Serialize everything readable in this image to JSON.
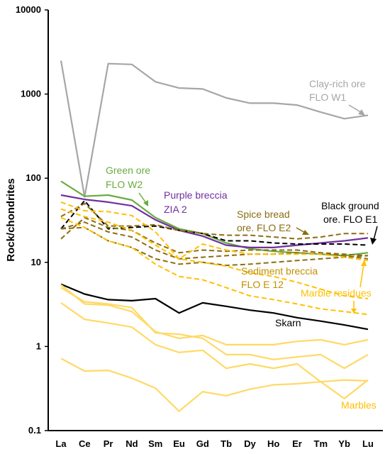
{
  "chart_data": {
    "type": "line",
    "y_scale": "log",
    "ylim": [
      0.1,
      10000
    ],
    "ylabel": "Rock/chondrites",
    "xlabel": "",
    "grid": false,
    "legend": "none (inline annotations)",
    "categories": [
      "La",
      "Ce",
      "Pr",
      "Nd",
      "Sm",
      "Eu",
      "Gd",
      "Tb",
      "Dy",
      "Ho",
      "Er",
      "Tm",
      "Yb",
      "Lu"
    ],
    "y_ticks": [
      "0.1",
      "1",
      "10",
      "100",
      "1000",
      "10000"
    ],
    "series": [
      {
        "name": "Clay-rich ore FLO W1",
        "color": "#a6a6a6",
        "dash": "solid",
        "values": [
          2500,
          60,
          2300,
          2250,
          1400,
          1180,
          1150,
          900,
          780,
          780,
          740,
          610,
          510,
          560
        ]
      },
      {
        "name": "Green ore FLO W2",
        "color": "#6aab3f",
        "dash": "solid",
        "values": [
          92,
          61,
          63,
          55,
          34,
          25,
          22,
          17,
          14.5,
          13.5,
          13,
          12.5,
          12,
          13
        ]
      },
      {
        "name": "Purple breccia ZIA 2",
        "color": "#7030a0",
        "dash": "solid",
        "values": [
          63,
          56,
          52,
          47,
          32,
          24,
          20.5,
          16,
          15,
          15,
          16,
          17,
          18,
          19.5
        ]
      },
      {
        "name": "Black ground ore. FLO E1",
        "color": "#000000",
        "dash": "dashed",
        "values": [
          25,
          54,
          25,
          26,
          27,
          24,
          22,
          18,
          18,
          17,
          16.5,
          16.5,
          16.5,
          16
        ]
      },
      {
        "name": "Spice bread ore. FLO E2",
        "color": "#8c6d12",
        "dash": "dashed",
        "values": [
          35,
          50,
          27,
          27,
          28,
          24,
          22,
          21,
          21,
          20,
          19,
          20,
          22,
          22
        ]
      },
      {
        "name": "",
        "color": "#8c6d12",
        "dash": "dashed",
        "values": [
          25,
          30,
          23,
          20,
          14,
          11,
          11.5,
          12,
          12.5,
          12.5,
          13,
          12.5,
          12,
          11
        ]
      },
      {
        "name": "",
        "color": "#8c6d12",
        "dash": "dashed",
        "values": [
          19,
          34,
          26,
          24,
          17,
          13,
          14,
          13.5,
          14,
          14,
          14,
          13,
          12.5,
          12
        ]
      },
      {
        "name": "Sediment breccia FLO E 12",
        "color": "#8c6d12",
        "dash": "dashed",
        "values": [
          25,
          26,
          18,
          15,
          11,
          9.5,
          10,
          9.2,
          9.5,
          10,
          10.5,
          11,
          11.5,
          12
        ]
      },
      {
        "name": "Marble residues",
        "color": "#ffc000",
        "dash": "dashed",
        "values": [
          52,
          41,
          40,
          36,
          23,
          11,
          16.5,
          14,
          12.5,
          12.5,
          12.5,
          12.5,
          11.5,
          10.5
        ]
      },
      {
        "name": "",
        "color": "#ffc000",
        "dash": "dashed",
        "values": [
          43,
          35,
          30,
          24,
          16,
          11,
          10,
          9,
          7.5,
          6.8,
          5.8,
          4.8,
          4,
          3.7
        ]
      },
      {
        "name": "",
        "color": "#ffc000",
        "dash": "dashed",
        "values": [
          34,
          26,
          18,
          15,
          9.5,
          6.8,
          6.2,
          5,
          4,
          3.6,
          3.2,
          2.8,
          2.6,
          2.4
        ]
      },
      {
        "name": "Skarn",
        "color": "#000000",
        "dash": "solid",
        "values": [
          5.5,
          4.2,
          3.6,
          3.5,
          3.7,
          2.5,
          3.3,
          3.0,
          2.7,
          2.5,
          2.2,
          2.0,
          1.8,
          1.6
        ]
      },
      {
        "name": "Marbles",
        "color": "#ffd966",
        "dash": "solid",
        "values": [
          5.4,
          3.2,
          3.1,
          2.6,
          1.5,
          1.25,
          1.35,
          1.05,
          1.05,
          1.05,
          1.15,
          1.2,
          1.05,
          1.2
        ]
      },
      {
        "name": "",
        "color": "#ffd966",
        "dash": "solid",
        "values": [
          5.0,
          3.4,
          3.2,
          2.9,
          1.45,
          1.4,
          1.25,
          0.8,
          0.8,
          0.7,
          0.75,
          0.8,
          0.55,
          0.8
        ]
      },
      {
        "name": "",
        "color": "#ffd966",
        "dash": "solid",
        "values": [
          3.3,
          2.1,
          1.9,
          1.7,
          1.05,
          0.85,
          0.9,
          0.55,
          0.62,
          0.55,
          0.62,
          0.38,
          0.24,
          0.4
        ]
      },
      {
        "name": "",
        "color": "#ffd966",
        "dash": "solid",
        "values": [
          0.72,
          0.51,
          0.52,
          0.42,
          0.32,
          0.17,
          0.29,
          0.26,
          0.31,
          0.35,
          0.36,
          0.38,
          0.4,
          0.39
        ]
      }
    ],
    "annotations": [
      {
        "text": "Clay-rich ore",
        "color": "#a6a6a6"
      },
      {
        "text": "FLO W1",
        "color": "#a6a6a6"
      },
      {
        "text": "Green ore",
        "color": "#6aab3f"
      },
      {
        "text": "FLO W2",
        "color": "#6aab3f"
      },
      {
        "text": "Purple breccia",
        "color": "#7030a0"
      },
      {
        "text": "ZIA 2",
        "color": "#7030a0"
      },
      {
        "text": "Black ground",
        "color": "#000000"
      },
      {
        "text": "ore. FLO E1",
        "color": "#000000"
      },
      {
        "text": "Spice bread",
        "color": "#8c6d12"
      },
      {
        "text": "ore. FLO E2",
        "color": "#8c6d12"
      },
      {
        "text": "Sediment breccia",
        "color": "#c09000"
      },
      {
        "text": "FLO E 12",
        "color": "#c09000"
      },
      {
        "text": "Marble residues",
        "color": "#ffc000"
      },
      {
        "text": "Skarn",
        "color": "#000000"
      },
      {
        "text": "Marbles",
        "color": "#ffc000"
      }
    ]
  }
}
